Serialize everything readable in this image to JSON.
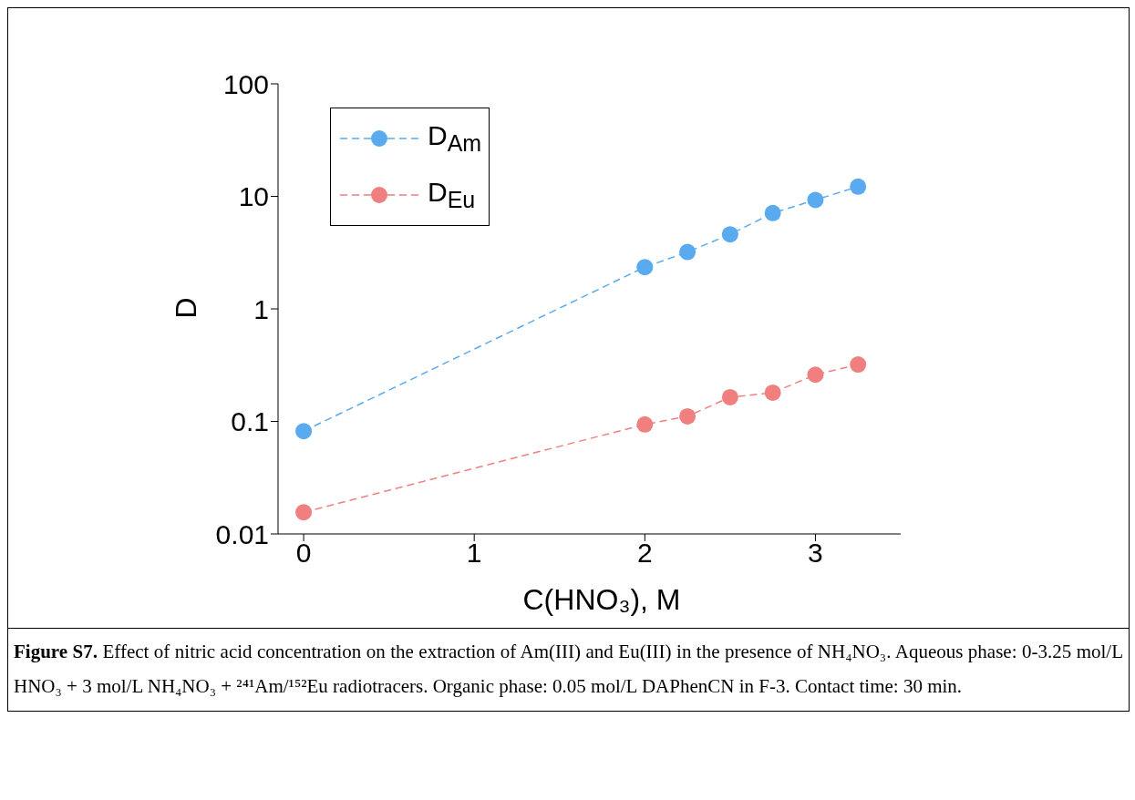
{
  "chart_data": {
    "type": "line",
    "xlabel": "C(HNO₃), M",
    "ylabel": "D",
    "xlim": [
      -0.15,
      3.5
    ],
    "xticks": [
      0,
      1,
      2,
      3
    ],
    "ylim": [
      0.01,
      100
    ],
    "yticks": [
      0.01,
      0.1,
      1,
      10,
      100
    ],
    "log": "y",
    "x": [
      0,
      2,
      2.25,
      2.5,
      2.75,
      3,
      3.25
    ],
    "series": [
      {
        "name": "D$_{Am}$",
        "color": "#5aaaf0",
        "values": [
          0.082,
          2.35,
          3.2,
          4.6,
          7.1,
          9.3,
          12.2
        ]
      },
      {
        "name": "D$_{Eu}$",
        "color": "#f07f7f",
        "values": [
          0.0156,
          0.094,
          0.111,
          0.164,
          0.18,
          0.26,
          0.32
        ]
      }
    ],
    "marker": "circle",
    "line_style": "dashed",
    "legend": "top left",
    "grid": false,
    "annotations": [
      "Figure S7.",
      "Effect of nitric acid concentration on the extraction of Am(III) and Eu(III) in the presence of NH₄NO₃. Aqueous phase: 0-3.25 mol/L HNO₃ + 3 mol/L NH₄NO₃ + ²⁴¹Am/¹⁵²Eu radiotracers. Organic phase: 0.05 mol/L DAPhenCN in F-3. Contact time: 30 min."
    ]
  }
}
